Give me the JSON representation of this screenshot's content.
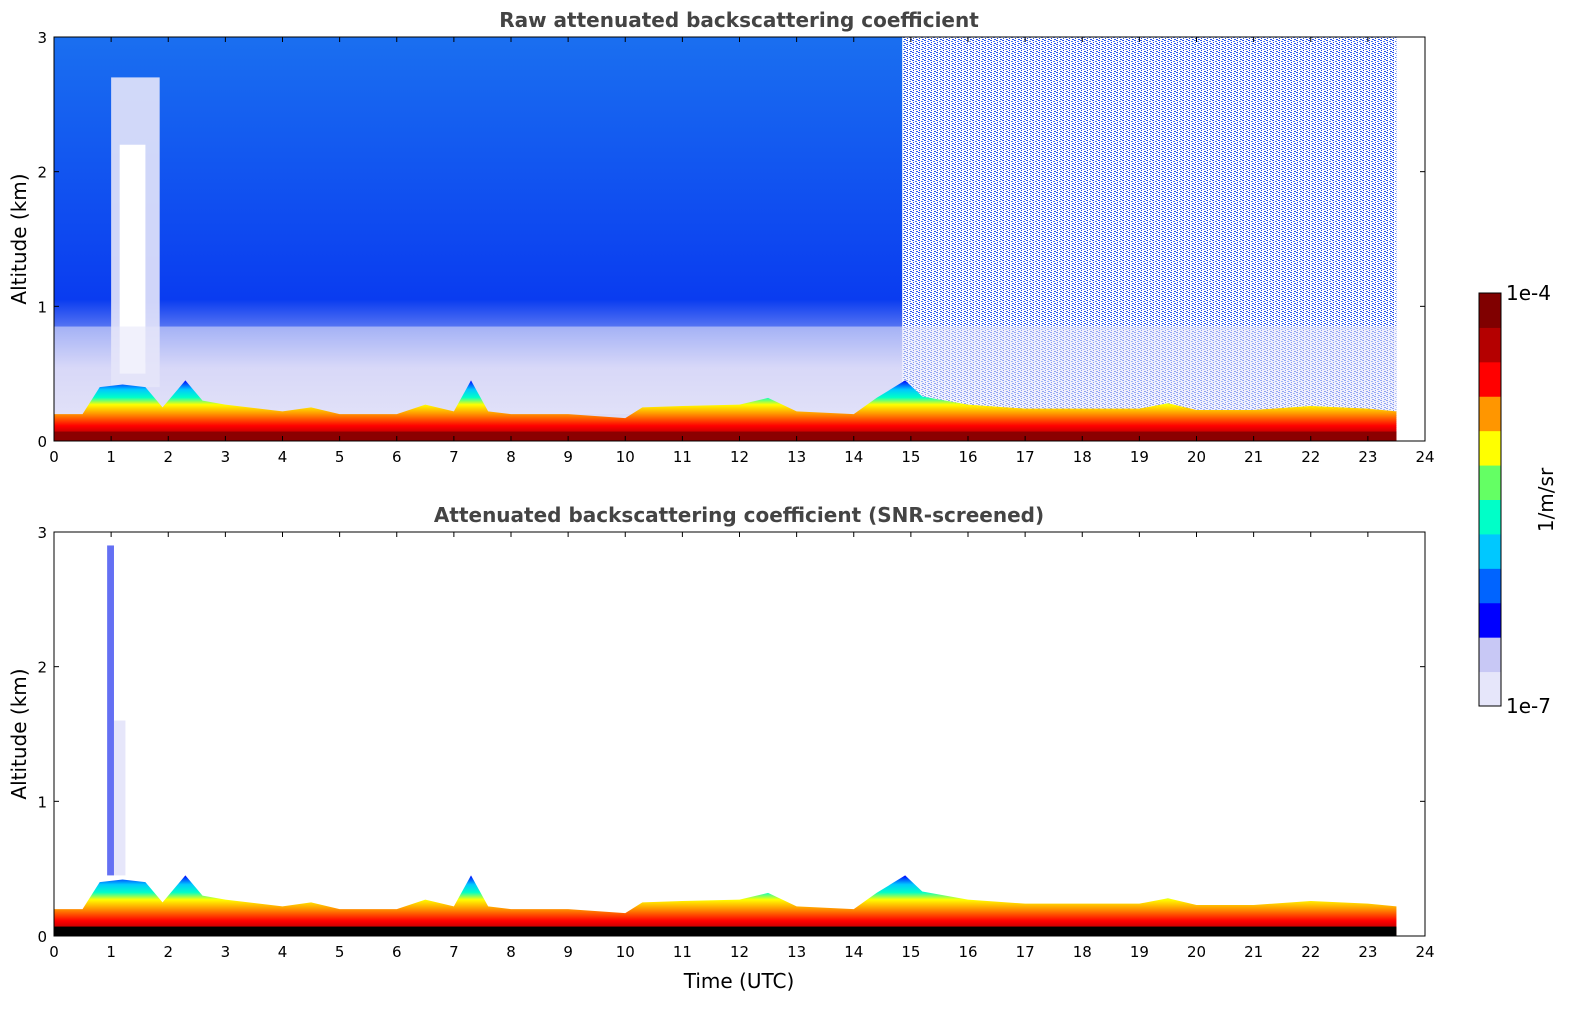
{
  "chart_data": [
    {
      "type": "heatmap",
      "title": "Raw attenuated backscattering coefficient",
      "xlabel": "",
      "ylabel": "Altitude (km)",
      "xlim": [
        0,
        24
      ],
      "ylim": [
        0,
        3
      ],
      "xticks": [
        "0",
        "1",
        "2",
        "3",
        "4",
        "5",
        "6",
        "7",
        "8",
        "9",
        "10",
        "11",
        "12",
        "13",
        "14",
        "15",
        "16",
        "17",
        "18",
        "19",
        "20",
        "21",
        "22",
        "23",
        "24"
      ],
      "yticks": [
        "0",
        "1",
        "2",
        "3"
      ],
      "data_extent_hours": [
        0,
        23.5
      ],
      "boundary_layer_top_km": [
        [
          0,
          0.2
        ],
        [
          0.5,
          0.2
        ],
        [
          0.8,
          0.4
        ],
        [
          1.2,
          0.42
        ],
        [
          1.6,
          0.4
        ],
        [
          1.9,
          0.25
        ],
        [
          2.3,
          0.45
        ],
        [
          2.6,
          0.3
        ],
        [
          3,
          0.27
        ],
        [
          4,
          0.22
        ],
        [
          4.5,
          0.25
        ],
        [
          5,
          0.2
        ],
        [
          6,
          0.2
        ],
        [
          6.5,
          0.27
        ],
        [
          7,
          0.22
        ],
        [
          7.3,
          0.45
        ],
        [
          7.6,
          0.22
        ],
        [
          8,
          0.2
        ],
        [
          9,
          0.2
        ],
        [
          10,
          0.17
        ],
        [
          10.3,
          0.25
        ],
        [
          11,
          0.26
        ],
        [
          12,
          0.27
        ],
        [
          12.5,
          0.32
        ],
        [
          13,
          0.22
        ],
        [
          14,
          0.2
        ],
        [
          14.4,
          0.32
        ],
        [
          14.9,
          0.45
        ],
        [
          15.2,
          0.33
        ],
        [
          16,
          0.27
        ],
        [
          17,
          0.24
        ],
        [
          18,
          0.24
        ],
        [
          19,
          0.24
        ],
        [
          19.5,
          0.28
        ],
        [
          20,
          0.23
        ],
        [
          21,
          0.23
        ],
        [
          22,
          0.26
        ],
        [
          23,
          0.24
        ],
        [
          23.5,
          0.22
        ]
      ]
    },
    {
      "type": "heatmap",
      "title": "Attenuated backscattering coefficient (SNR-screened)",
      "xlabel": "Time (UTC)",
      "ylabel": "Altitude (km)",
      "xlim": [
        0,
        24
      ],
      "ylim": [
        0,
        3
      ],
      "xticks": [
        "0",
        "1",
        "2",
        "3",
        "4",
        "5",
        "6",
        "7",
        "8",
        "9",
        "10",
        "11",
        "12",
        "13",
        "14",
        "15",
        "16",
        "17",
        "18",
        "19",
        "20",
        "21",
        "22",
        "23",
        "24"
      ],
      "yticks": [
        "0",
        "1",
        "2",
        "3"
      ],
      "data_extent_hours": [
        0,
        23.5
      ],
      "boundary_layer_top_km": [
        [
          0,
          0.2
        ],
        [
          0.5,
          0.2
        ],
        [
          0.8,
          0.4
        ],
        [
          1.2,
          0.42
        ],
        [
          1.6,
          0.4
        ],
        [
          1.9,
          0.25
        ],
        [
          2.3,
          0.45
        ],
        [
          2.6,
          0.3
        ],
        [
          3,
          0.27
        ],
        [
          4,
          0.22
        ],
        [
          4.5,
          0.25
        ],
        [
          5,
          0.2
        ],
        [
          6,
          0.2
        ],
        [
          6.5,
          0.27
        ],
        [
          7,
          0.22
        ],
        [
          7.3,
          0.45
        ],
        [
          7.6,
          0.22
        ],
        [
          8,
          0.2
        ],
        [
          9,
          0.2
        ],
        [
          10,
          0.17
        ],
        [
          10.3,
          0.25
        ],
        [
          11,
          0.26
        ],
        [
          12,
          0.27
        ],
        [
          12.5,
          0.32
        ],
        [
          13,
          0.22
        ],
        [
          14,
          0.2
        ],
        [
          14.4,
          0.32
        ],
        [
          14.9,
          0.45
        ],
        [
          15.2,
          0.33
        ],
        [
          16,
          0.27
        ],
        [
          17,
          0.24
        ],
        [
          18,
          0.24
        ],
        [
          19,
          0.24
        ],
        [
          19.5,
          0.28
        ],
        [
          20,
          0.23
        ],
        [
          21,
          0.23
        ],
        [
          22,
          0.26
        ],
        [
          23,
          0.24
        ],
        [
          23.5,
          0.22
        ]
      ]
    }
  ],
  "colorbar": {
    "max_label": "1e-4",
    "min_label": "1e-7",
    "unit_label": "1/m/sr",
    "colors": [
      "#e6e6fa",
      "#c8c8f5",
      "#0000ff",
      "#0064ff",
      "#00c8ff",
      "#00ffc8",
      "#64ff64",
      "#ffff00",
      "#ff9600",
      "#ff0000",
      "#b40000",
      "#800000"
    ]
  },
  "colors": {
    "raw_background": "#1a63ec",
    "raw_night_background": "#ffffff",
    "screened_background": "#ffffff",
    "surface_screened": "#000000"
  }
}
